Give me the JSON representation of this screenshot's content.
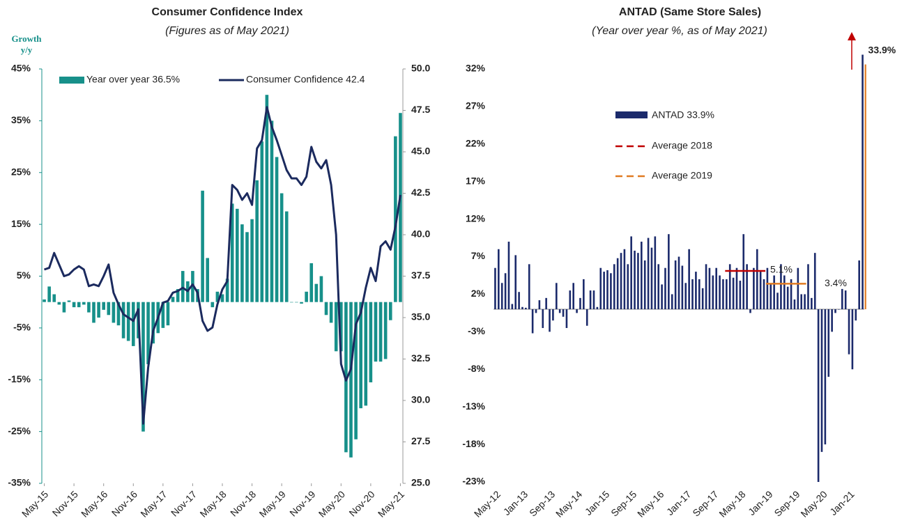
{
  "chart_data": [
    {
      "type": "combo",
      "title": "Consumer Confidence Index",
      "subtitle": "(Figures as of May 2021)",
      "y_label": "Growth y/y",
      "categories": [
        "May-15",
        null,
        null,
        null,
        null,
        null,
        "Nov-15",
        null,
        null,
        null,
        null,
        null,
        "May-16",
        null,
        null,
        null,
        null,
        null,
        "Nov-16",
        null,
        null,
        null,
        null,
        null,
        "May-17",
        null,
        null,
        null,
        null,
        null,
        "Nov-17",
        null,
        null,
        null,
        null,
        null,
        "May-18",
        null,
        null,
        null,
        null,
        null,
        "Nov-18",
        null,
        null,
        null,
        null,
        null,
        "May-19",
        null,
        null,
        null,
        null,
        null,
        "Nov-19",
        null,
        null,
        null,
        null,
        null,
        "May-20",
        null,
        null,
        null,
        null,
        null,
        "Nov-20",
        null,
        null,
        null,
        null,
        null,
        "May-21"
      ],
      "series": [
        {
          "name": "Year over year 36.5%",
          "type": "bar",
          "color": "#17908a",
          "values": [
            0.5,
            3,
            1.5,
            -0.5,
            -2,
            0.3,
            -1,
            -1,
            -0.5,
            -2,
            -4,
            -3,
            -1.5,
            -2.5,
            -4,
            -4.5,
            -7,
            -7.5,
            -8.5,
            -7,
            -25,
            -12,
            -8,
            -6,
            -5,
            -4.5,
            1,
            2.5,
            6,
            4,
            6,
            2.5,
            21.5,
            8.5,
            -1,
            2,
            1.5,
            4.5,
            19,
            18,
            15,
            13.5,
            16,
            23.5,
            31,
            40,
            35,
            28,
            21,
            17.5,
            0,
            0,
            -0.3,
            2,
            7.5,
            3.5,
            5,
            -2.5,
            -4,
            -9.5,
            -9.5,
            -29,
            -30,
            -26.5,
            -20.5,
            -20,
            -15.5,
            -11.5,
            -11.5,
            -11,
            -3.5,
            32,
            36.5
          ]
        },
        {
          "name": "Consumer Confidence 42.4",
          "type": "line",
          "axis": "y2",
          "color": "#1b2a5e",
          "values": [
            37.9,
            38.0,
            38.9,
            38.2,
            37.5,
            37.6,
            37.9,
            38.1,
            37.9,
            36.9,
            37.0,
            36.9,
            37.5,
            38.2,
            36.5,
            35.8,
            35.2,
            35.0,
            34.8,
            35.5,
            28.6,
            32.0,
            34.2,
            35.0,
            35.9,
            36.0,
            36.5,
            36.6,
            36.8,
            36.6,
            37.0,
            36.5,
            34.8,
            34.2,
            34.4,
            35.8,
            36.7,
            37.2,
            43.0,
            42.7,
            42.1,
            42.5,
            41.8,
            45.2,
            45.7,
            47.7,
            46.5,
            45.7,
            44.8,
            43.9,
            43.4,
            43.4,
            43.0,
            43.5,
            45.3,
            44.4,
            44.0,
            44.5,
            43.0,
            40.0,
            32.2,
            31.2,
            31.9,
            34.6,
            35.3,
            36.8,
            38.0,
            37.2,
            39.3,
            39.6,
            39.1,
            40.5,
            42.4
          ]
        }
      ],
      "ylim": [
        -35,
        45
      ],
      "yticks": [
        {
          "value": -35,
          "label": "-35%"
        },
        {
          "value": -25,
          "label": "-25%"
        },
        {
          "value": -15,
          "label": "-15%"
        },
        {
          "value": -5,
          "label": "-5%"
        },
        {
          "value": 5,
          "label": "5%"
        },
        {
          "value": 15,
          "label": "15%"
        },
        {
          "value": 25,
          "label": "25%"
        },
        {
          "value": 35,
          "label": "35%"
        },
        {
          "value": 45,
          "label": "45%"
        }
      ],
      "y2lim": [
        25,
        50
      ],
      "y2ticks": [
        {
          "value": 25,
          "label": "25.0"
        },
        {
          "value": 27.5,
          "label": "27.5"
        },
        {
          "value": 30,
          "label": "30.0"
        },
        {
          "value": 32.5,
          "label": "32.5"
        },
        {
          "value": 35,
          "label": "35.0"
        },
        {
          "value": 37.5,
          "label": "37.5"
        },
        {
          "value": 40,
          "label": "40.0"
        },
        {
          "value": 42.5,
          "label": "42.5"
        },
        {
          "value": 45,
          "label": "45.0"
        },
        {
          "value": 47.5,
          "label": "47.5"
        },
        {
          "value": 50,
          "label": "50.0"
        }
      ],
      "legend": "top-left"
    },
    {
      "type": "bar",
      "title": "ANTAD (Same Store Sales)",
      "subtitle": "(Year over year %, as of May 2021)",
      "categories": [
        "May-12",
        null,
        null,
        null,
        null,
        null,
        null,
        null,
        "Jan-13",
        null,
        null,
        null,
        null,
        null,
        null,
        null,
        "Sep-13",
        null,
        null,
        null,
        null,
        null,
        null,
        null,
        "May-14",
        null,
        null,
        null,
        null,
        null,
        null,
        null,
        "Jan-15",
        null,
        null,
        null,
        null,
        null,
        null,
        null,
        "Sep-15",
        null,
        null,
        null,
        null,
        null,
        null,
        null,
        "May-16",
        null,
        null,
        null,
        null,
        null,
        null,
        null,
        "Jan-17",
        null,
        null,
        null,
        null,
        null,
        null,
        null,
        "Sep-17",
        null,
        null,
        null,
        null,
        null,
        null,
        null,
        "May-18",
        null,
        null,
        null,
        null,
        null,
        null,
        null,
        "Jan-19",
        null,
        null,
        null,
        null,
        null,
        null,
        null,
        "Sep-19",
        null,
        null,
        null,
        null,
        null,
        null,
        null,
        "May-20",
        null,
        null,
        null,
        null,
        null,
        null,
        null,
        "Jan-21",
        null,
        null,
        null,
        null
      ],
      "series": [
        {
          "name": "ANTAD 33.9%",
          "color": "#1b2a6b",
          "values": [
            5.5,
            8,
            3.5,
            4.8,
            9,
            0.7,
            7.2,
            2.3,
            0.3,
            0.2,
            6,
            -3.2,
            -0.5,
            1.2,
            -2.5,
            1.5,
            -3,
            -1.5,
            3.5,
            -0.5,
            -1,
            -2.5,
            2.5,
            3.5,
            -0.5,
            1.5,
            4,
            -2.2,
            2.5,
            2.5,
            0.3,
            5.5,
            5,
            5.2,
            4.8,
            6,
            6.8,
            7.5,
            8,
            6,
            9.7,
            7.8,
            7.5,
            9,
            6.5,
            9.5,
            8.2,
            9.7,
            6,
            3.3,
            5.5,
            10,
            2,
            6.5,
            7,
            5.8,
            3.5,
            8,
            4,
            5,
            4,
            2.8,
            6,
            5.5,
            4.5,
            5.5,
            4.5,
            4,
            4,
            6,
            4.2,
            5.5,
            3.8,
            10,
            6,
            -0.5,
            5.5,
            8,
            5,
            4,
            5.5,
            3.3,
            4.5,
            2.2,
            6,
            4.5,
            3,
            4,
            1.3,
            5.5,
            2,
            2,
            6,
            1.5,
            7.5,
            -23,
            -19,
            -18,
            -9,
            -3,
            -0.5,
            0,
            2.7,
            2.5,
            -6,
            -8,
            -1.5,
            6.5,
            33.9
          ]
        }
      ],
      "reference_lines": [
        {
          "name": "Average 2018",
          "value": 5.1,
          "label": "5.1%",
          "color": "#c00000"
        },
        {
          "name": "Average 2019",
          "value": 3.4,
          "label": "3.4%",
          "color": "#e07b22"
        }
      ],
      "annotations": [
        {
          "text": "33.9%"
        }
      ],
      "ylim": [
        -23,
        35
      ],
      "yticks": [
        {
          "value": -23,
          "label": "-23%"
        },
        {
          "value": -18,
          "label": "-18%"
        },
        {
          "value": -13,
          "label": "-13%"
        },
        {
          "value": -8,
          "label": "-8%"
        },
        {
          "value": -3,
          "label": "-3%"
        },
        {
          "value": 2,
          "label": "2%"
        },
        {
          "value": 7,
          "label": "7%"
        },
        {
          "value": 12,
          "label": "12%"
        },
        {
          "value": 17,
          "label": "17%"
        },
        {
          "value": 22,
          "label": "22%"
        },
        {
          "value": 27,
          "label": "27%"
        },
        {
          "value": 32,
          "label": "32%"
        }
      ],
      "legend": "inside"
    }
  ]
}
